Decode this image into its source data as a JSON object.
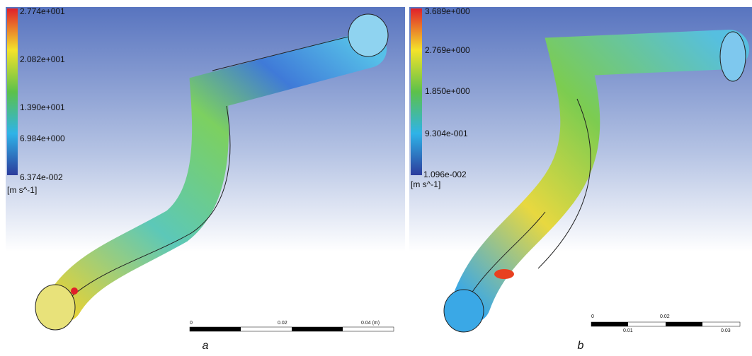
{
  "panels": [
    {
      "caption": "a",
      "legend": {
        "labels": [
          "2.774e+001",
          "2.082e+001",
          "1.390e+001",
          "6.984e+000",
          "6.374e-002"
        ],
        "unit": "[m s^-1]"
      },
      "scale_bar": {
        "labels": [
          "0",
          "0.02",
          "0.04 (m)"
        ]
      }
    },
    {
      "caption": "b",
      "legend": {
        "labels": [
          "3.689e+000",
          "2.769e+000",
          "1.850e+000",
          "9.304e-001",
          "1.096e-002"
        ],
        "unit": "[m s^-1]"
      },
      "scale_bar": {
        "labels": [
          "0",
          "0.02",
          "0.01",
          "0.03"
        ]
      }
    }
  ]
}
